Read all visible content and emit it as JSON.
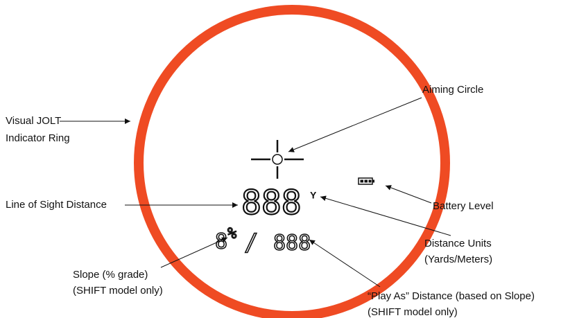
{
  "callouts": {
    "ring": {
      "lines": [
        "Visual JOLT",
        "Indicator Ring"
      ]
    },
    "aiming": {
      "lines": [
        "Aiming Circle"
      ]
    },
    "battery": {
      "lines": [
        "Battery Level"
      ]
    },
    "los": {
      "lines": [
        "Line of Sight Distance"
      ]
    },
    "units": {
      "lines": [
        "Distance Units",
        "(Yards/Meters)"
      ]
    },
    "slope": {
      "lines": [
        "Slope (% grade)",
        "(SHIFT model only)"
      ]
    },
    "playas": {
      "lines": [
        "“Play As” Distance (based on Slope)",
        "(SHIFT model only)"
      ]
    }
  },
  "display": {
    "distance": "888",
    "unit": "Y",
    "slope": "8",
    "percent": "%",
    "slash": "/",
    "playas": "888"
  }
}
